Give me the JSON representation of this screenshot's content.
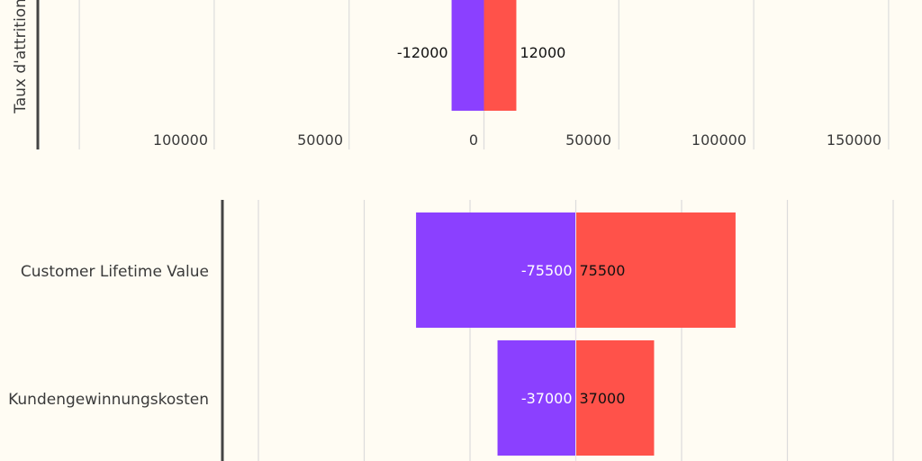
{
  "colors": {
    "negative": "#8b40ff",
    "positive": "#ff524a",
    "background": "#fffcf3"
  },
  "chart_data": [
    {
      "type": "bar",
      "orientation": "horizontal",
      "ylabel": "Taux d'attrition",
      "categories": [
        ""
      ],
      "series": [
        {
          "values": [
            -12000
          ]
        },
        {
          "values": [
            12000
          ]
        }
      ],
      "xlim": [
        -150000,
        150000
      ],
      "x_ticks": [
        -100000,
        -50000,
        0,
        50000,
        100000,
        150000
      ],
      "x_tick_labels": [
        "100000",
        "50000",
        "0",
        "50000",
        "100000",
        "150000"
      ],
      "data_labels": [
        [
          "-12000"
        ],
        [
          "12000"
        ]
      ],
      "grid": true
    },
    {
      "type": "bar",
      "orientation": "horizontal",
      "categories": [
        "Customer Lifetime Value",
        "Kundengewinnungskosten"
      ],
      "series": [
        {
          "values": [
            -75500,
            -37000
          ]
        },
        {
          "values": [
            75500,
            37000
          ]
        }
      ],
      "xlim": [
        -150000,
        150000
      ],
      "grid": true,
      "data_labels": [
        [
          "-75500",
          "-37000"
        ],
        [
          "75500",
          "37000"
        ]
      ]
    }
  ]
}
